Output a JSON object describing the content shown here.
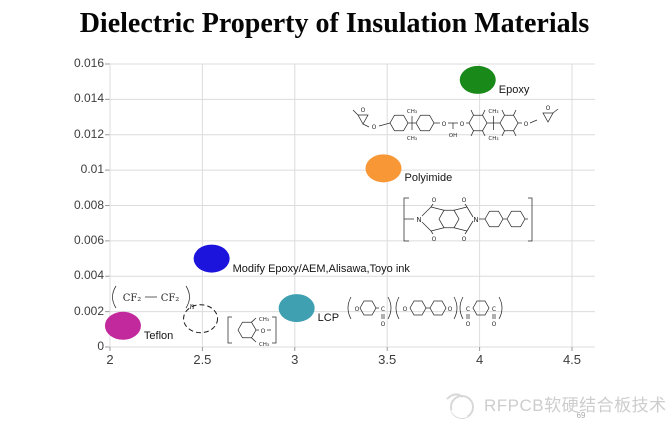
{
  "title": "Dielectric Property of Insulation Materials",
  "chart_data": {
    "type": "scatter",
    "title": "Dielectric Property of Insulation Materials",
    "xlabel": "",
    "ylabel": "",
    "xlim": [
      2,
      4.5
    ],
    "ylim": [
      0,
      0.016
    ],
    "x_ticks": [
      "2",
      "2.5",
      "3",
      "3.5",
      "4",
      "4.5"
    ],
    "y_ticks": [
      "0",
      "0.002",
      "0.004",
      "0.006",
      "0.008",
      "0.01",
      "0.012",
      "0.014",
      "0.016"
    ],
    "grid": true,
    "legend_position": "none",
    "points": [
      {
        "label": "Teflon",
        "x": 2.07,
        "y": 0.0012,
        "color": "#c2299d",
        "marker": "ellipse"
      },
      {
        "label": "Modify Epoxy/AEM,Alisawa,Toyo ink",
        "x": 2.55,
        "y": 0.005,
        "color": "#1c13dd",
        "marker": "ellipse"
      },
      {
        "label": "LCP",
        "x": 3.01,
        "y": 0.0022,
        "color": "#3fa0b2",
        "marker": "ellipse"
      },
      {
        "label": "Polyimide",
        "x": 3.48,
        "y": 0.0101,
        "color": "#f79736",
        "marker": "ellipse"
      },
      {
        "label": "Epoxy",
        "x": 3.99,
        "y": 0.0151,
        "color": "#198a19",
        "marker": "ellipse"
      },
      {
        "label": "",
        "x": 2.49,
        "y": 0.0016,
        "color": "none",
        "marker": "dashed-ellipse"
      }
    ],
    "annotations": [
      "PTFE repeat-unit structure near Teflon point",
      "poly(phenylene ether) structure beside dashed ellipse",
      "aromatic polyester structure beside LCP point",
      "polyimide repeat-unit structure below Polyimide point",
      "epoxy resin structure below Epoxy point"
    ]
  },
  "chem": {
    "cf2": "CF₂",
    "n": "n",
    "o": "O",
    "n_atom": "N",
    "c": "C",
    "ch3": "CH₃",
    "oh": "OH"
  },
  "footer": {
    "watermark": "RFPCB软硬结合板技术",
    "page": "69"
  }
}
